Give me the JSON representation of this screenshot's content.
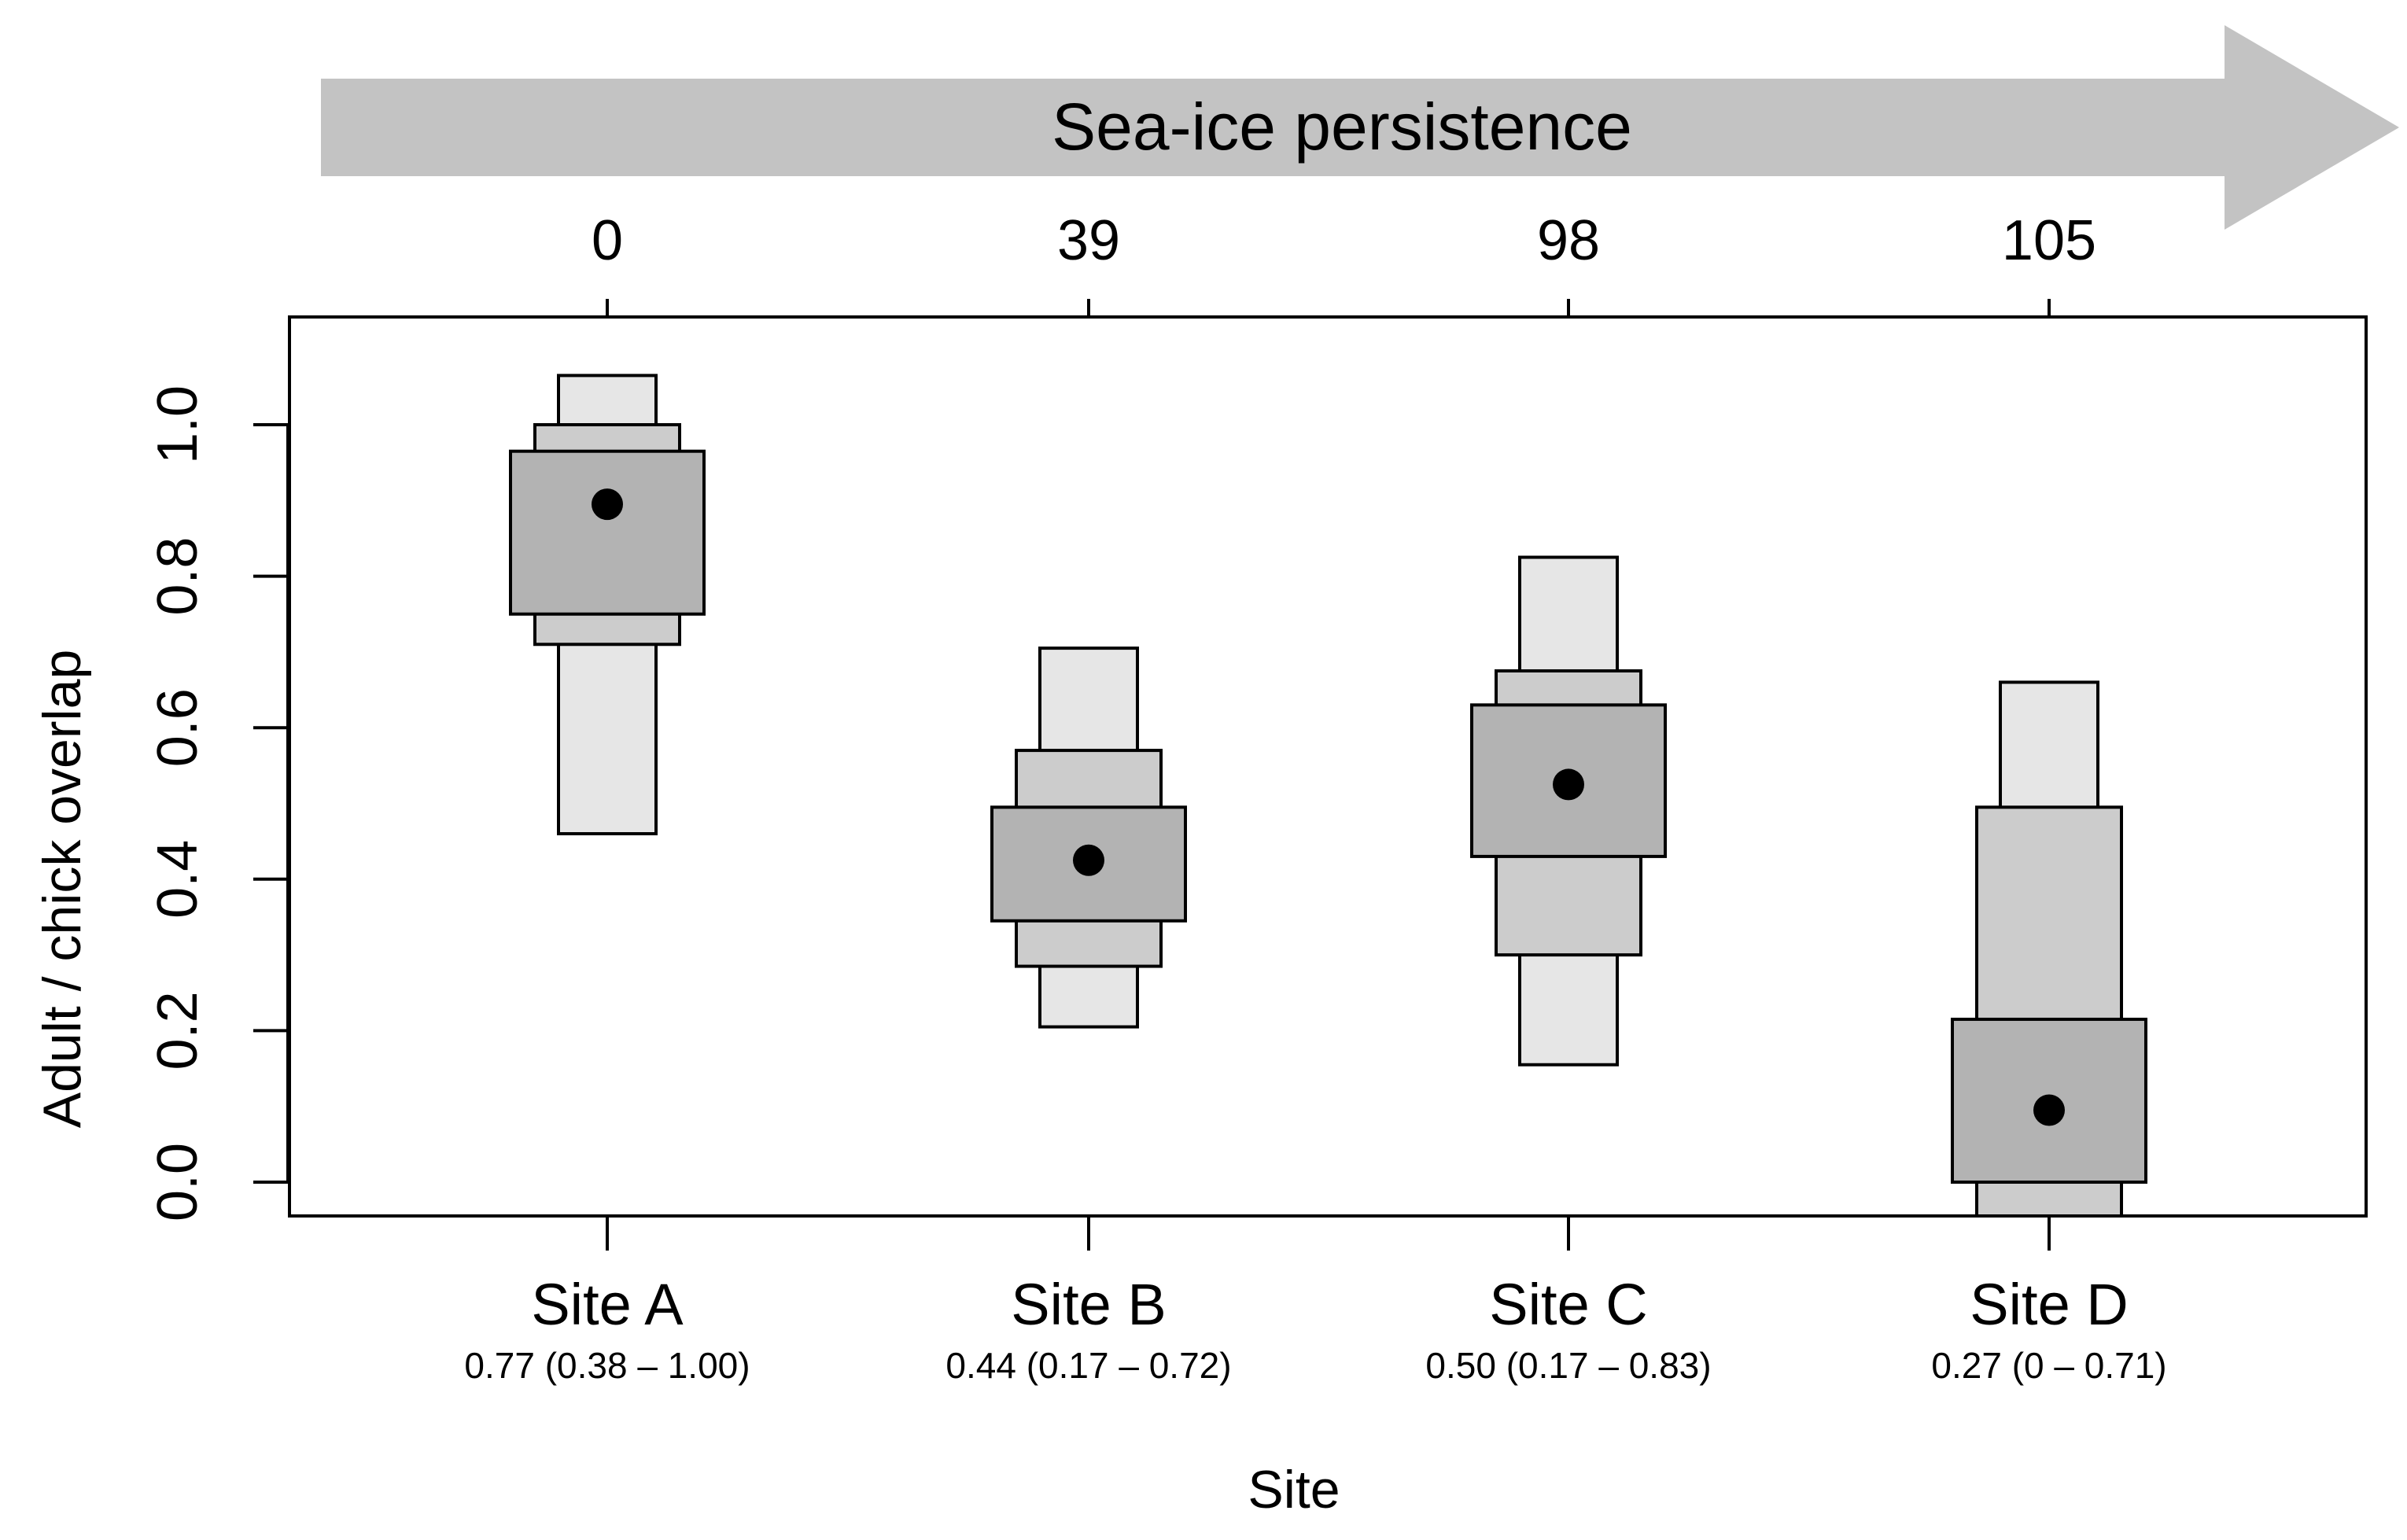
{
  "chart_data": {
    "type": "interval",
    "arrow_label": "Sea-ice persistence",
    "top_axis_ticks": [
      "0",
      "39",
      "98",
      "105"
    ],
    "categories": [
      "Site A",
      "Site B",
      "Site C",
      "Site D"
    ],
    "category_stats": [
      "0.77 (0.38 – 1.00)",
      "0.44 (0.17 – 0.72)",
      "0.50 (0.17 – 0.83)",
      "0.27 (0 – 0.71)"
    ],
    "xlabel": "Site",
    "ylabel": "Adult / chick overlap",
    "ylim": [
      -0.045,
      1.145
    ],
    "yticks": [
      0.0,
      0.2,
      0.4,
      0.6,
      0.8,
      1.0
    ],
    "ytick_labels": [
      "0.0",
      "0.2",
      "0.4",
      "0.6",
      "0.8",
      "1.0"
    ],
    "sites": [
      {
        "name": "Site A",
        "point": 0.895,
        "outer": [
          0.46,
          1.065
        ],
        "middle": [
          0.71,
          1.0
        ],
        "inner": [
          0.75,
          0.965
        ]
      },
      {
        "name": "Site B",
        "point": 0.425,
        "outer": [
          0.205,
          0.705
        ],
        "middle": [
          0.285,
          0.57
        ],
        "inner": [
          0.345,
          0.495
        ]
      },
      {
        "name": "Site C",
        "point": 0.525,
        "outer": [
          0.155,
          0.825
        ],
        "middle": [
          0.3,
          0.675
        ],
        "inner": [
          0.43,
          0.63
        ]
      },
      {
        "name": "Site D",
        "point": 0.095,
        "outer": [
          -0.045,
          0.66
        ],
        "middle": [
          -0.045,
          0.495
        ],
        "inner": [
          0.0,
          0.215
        ]
      }
    ],
    "colors": {
      "outer": "#e6e6e6",
      "middle": "#cccccc",
      "inner": "#b3b3b3",
      "point": "#000000",
      "arrow": "#c3c3c3"
    }
  }
}
